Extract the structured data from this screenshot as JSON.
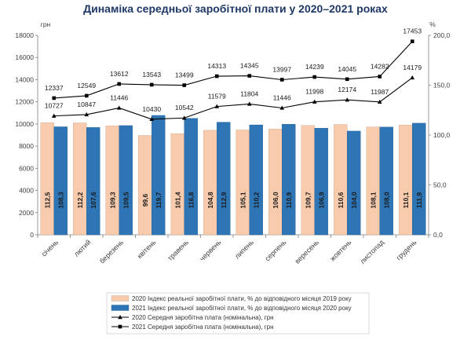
{
  "chart_data": {
    "type": "bar",
    "title": "Динаміка середньої заробітної плати у 2020–2021 роках",
    "left_axis_unit": "грн",
    "right_axis_unit": "%",
    "left_ticks": [
      0,
      2000,
      4000,
      6000,
      8000,
      10000,
      12000,
      14000,
      16000,
      18000
    ],
    "left_tick_labels": [
      "0",
      "2000",
      "4000",
      "6000",
      "8000",
      "10000",
      "12000",
      "14000",
      "16000",
      "18000"
    ],
    "right_ticks": [
      0,
      50,
      100,
      150,
      200
    ],
    "right_tick_labels": [
      "0,0",
      "50,0",
      "100,0",
      "150,0",
      "200,0"
    ],
    "ylim_left": [
      0,
      18000
    ],
    "ylim_right": [
      0,
      200
    ],
    "categories": [
      "січень",
      "лютий",
      "березень",
      "квітень",
      "травень",
      "червень",
      "липень",
      "серпень",
      "вересень",
      "жовтень",
      "листопад",
      "грудень"
    ],
    "bars": [
      {
        "name": "2020 Індекс реальної заробітної плати, % до відповідного місяця 2019 року",
        "color": "#f8cbad",
        "values": [
          112.5,
          112.2,
          109.3,
          99.6,
          101.4,
          104.8,
          105.1,
          106.0,
          109.7,
          110.6,
          108.1,
          110.1
        ],
        "labels": [
          "112,5",
          "112,2",
          "109,3",
          "99,6",
          "101,4",
          "104,8",
          "105,1",
          "106,0",
          "109,7",
          "110,6",
          "108,1",
          "110,1"
        ]
      },
      {
        "name": "2021 Індекс реальної заробітної плати, % до відповідного місяця 2020 року",
        "color": "#2e75b6",
        "values": [
          108.3,
          107.6,
          109.5,
          119.7,
          116.8,
          112.9,
          110.2,
          110.9,
          106.9,
          104.0,
          108.0,
          111.9
        ],
        "labels": [
          "108,3",
          "107,6",
          "109,5",
          "119,7",
          "116,8",
          "112,9",
          "110,2",
          "110,9",
          "106,9",
          "104,0",
          "108,0",
          "111,9"
        ]
      }
    ],
    "lines": [
      {
        "name": "2020 Середня заробітна плата (номінальна), грн",
        "marker": "triangle",
        "values": [
          10727,
          10847,
          11446,
          10430,
          10542,
          11579,
          11804,
          11446,
          11998,
          12174,
          11987,
          14179
        ],
        "labels": [
          "10727",
          "10847",
          "11446",
          "10430",
          "10542",
          "11579",
          "11804",
          "11446",
          "11998",
          "12174",
          "11987",
          "14179"
        ]
      },
      {
        "name": "2021 Середня заробітна плата (номінальна), грн",
        "marker": "square",
        "values": [
          12337,
          12549,
          13612,
          13543,
          13499,
          14313,
          14345,
          13997,
          14239,
          14045,
          14282,
          17453
        ],
        "labels": [
          "12337",
          "12549",
          "13612",
          "13543",
          "13499",
          "14313",
          "14345",
          "13997",
          "14239",
          "14045",
          "14282",
          "17453"
        ]
      }
    ],
    "legend_position": "bottom",
    "grid": false
  }
}
